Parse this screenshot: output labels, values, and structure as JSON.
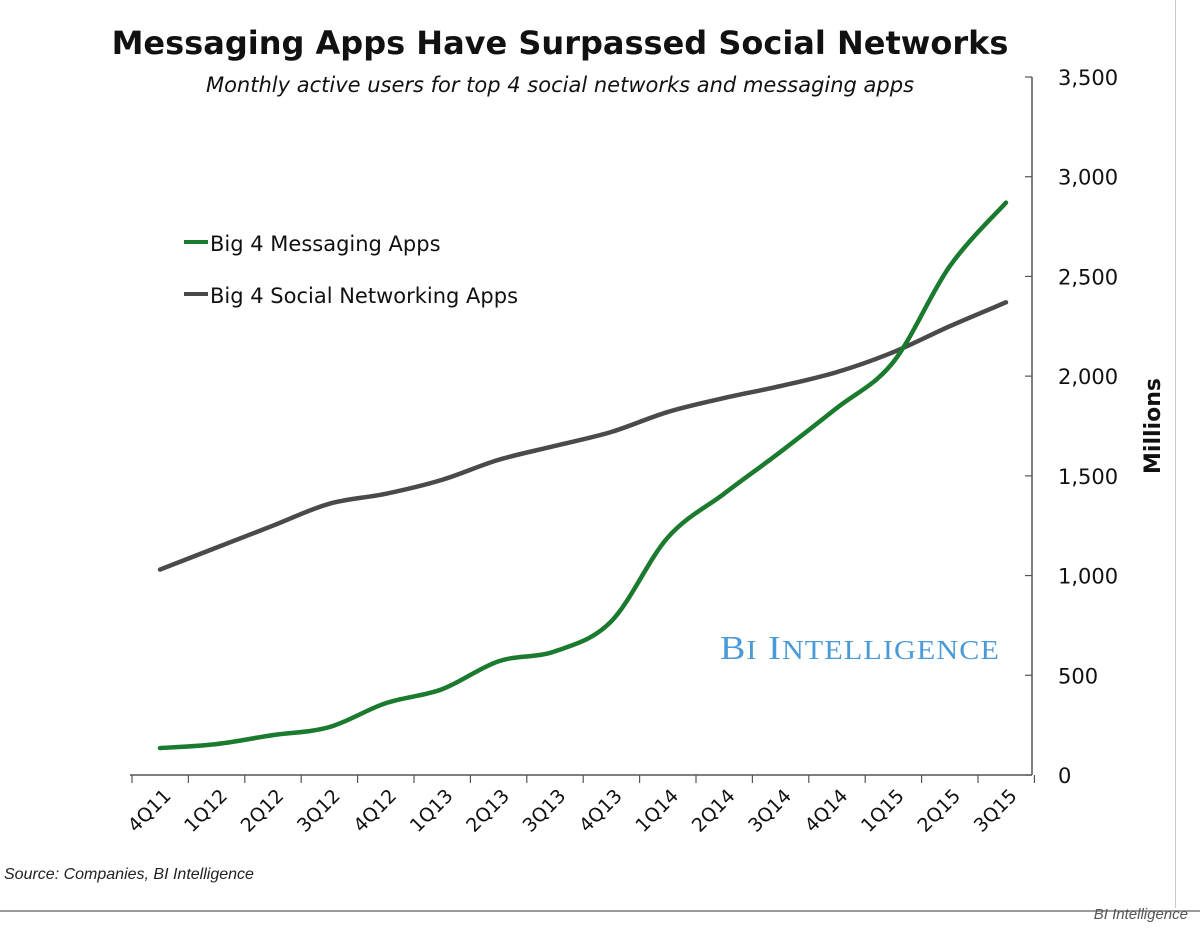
{
  "chart_data": {
    "type": "line",
    "title": "Messaging Apps Have Surpassed Social Networks",
    "subtitle": "Monthly active users for top 4 social networks and messaging apps",
    "ylabel": "Millions",
    "xlabel": "",
    "ylim": [
      0,
      3500
    ],
    "yticks": [
      "0",
      "500",
      "1,000",
      "1,500",
      "2,000",
      "2,500",
      "3,000",
      "3,500"
    ],
    "y_axis_position": "right",
    "grid": false,
    "legend_position": "top-left",
    "categories": [
      "4Q11",
      "1Q12",
      "2Q12",
      "3Q12",
      "4Q12",
      "1Q13",
      "2Q13",
      "3Q13",
      "4Q13",
      "1Q14",
      "2Q14",
      "3Q14",
      "4Q14",
      "1Q15",
      "2Q15",
      "3Q15"
    ],
    "series": [
      {
        "name": "Big 4 Messaging Apps",
        "color": "#1a7a2e",
        "values": [
          135,
          155,
          200,
          240,
          360,
          430,
          570,
          620,
          770,
          1190,
          1410,
          1620,
          1840,
          2070,
          2550,
          2870
        ]
      },
      {
        "name": "Big 4 Social Networking Apps",
        "color": "#4a4a4a",
        "values": [
          1030,
          1140,
          1250,
          1360,
          1410,
          1480,
          1580,
          1650,
          1720,
          1820,
          1890,
          1950,
          2020,
          2120,
          2250,
          2370
        ]
      }
    ],
    "watermark": "BI INTELLIGENCE",
    "watermark_color": "#4a9ad8",
    "source": "Source: Companies, BI Intelligence"
  },
  "credit": "BI Intelligence"
}
